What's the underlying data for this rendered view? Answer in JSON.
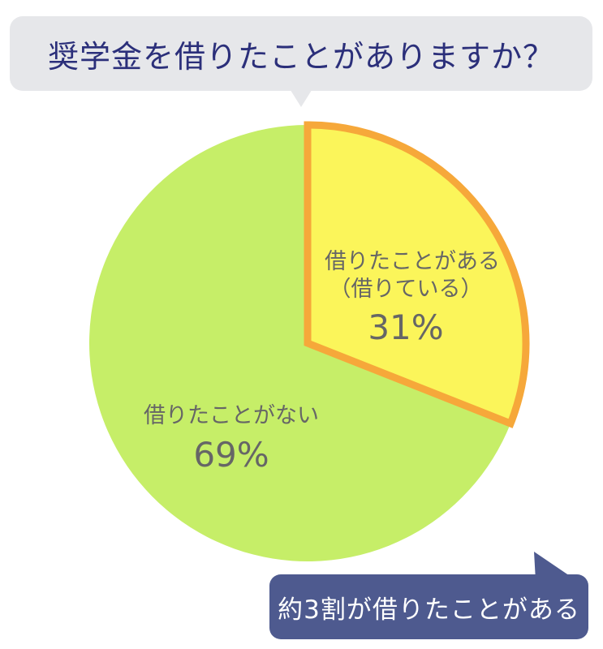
{
  "question": "奨学金を借りたことがありますか？",
  "callout": "約3割が借りたことがある",
  "colors": {
    "title_bg": "#e6e7ea",
    "title_text": "#2b2f7a",
    "slice_borrowed": "#fbf55a",
    "slice_borrowed_border": "#f6a83a",
    "slice_not_borrowed": "#c6ee68",
    "label_text": "#666666",
    "callout_bg": "#4e5a8f",
    "callout_text": "#ffffff"
  },
  "chart_data": {
    "type": "pie",
    "title": "奨学金を借りたことがありますか？",
    "slices": [
      {
        "label": "借りたことがある",
        "sublabel": "（借りている）",
        "value": 31,
        "value_label": "31%"
      },
      {
        "label": "借りたことがない",
        "value": 69,
        "value_label": "69%"
      }
    ]
  }
}
